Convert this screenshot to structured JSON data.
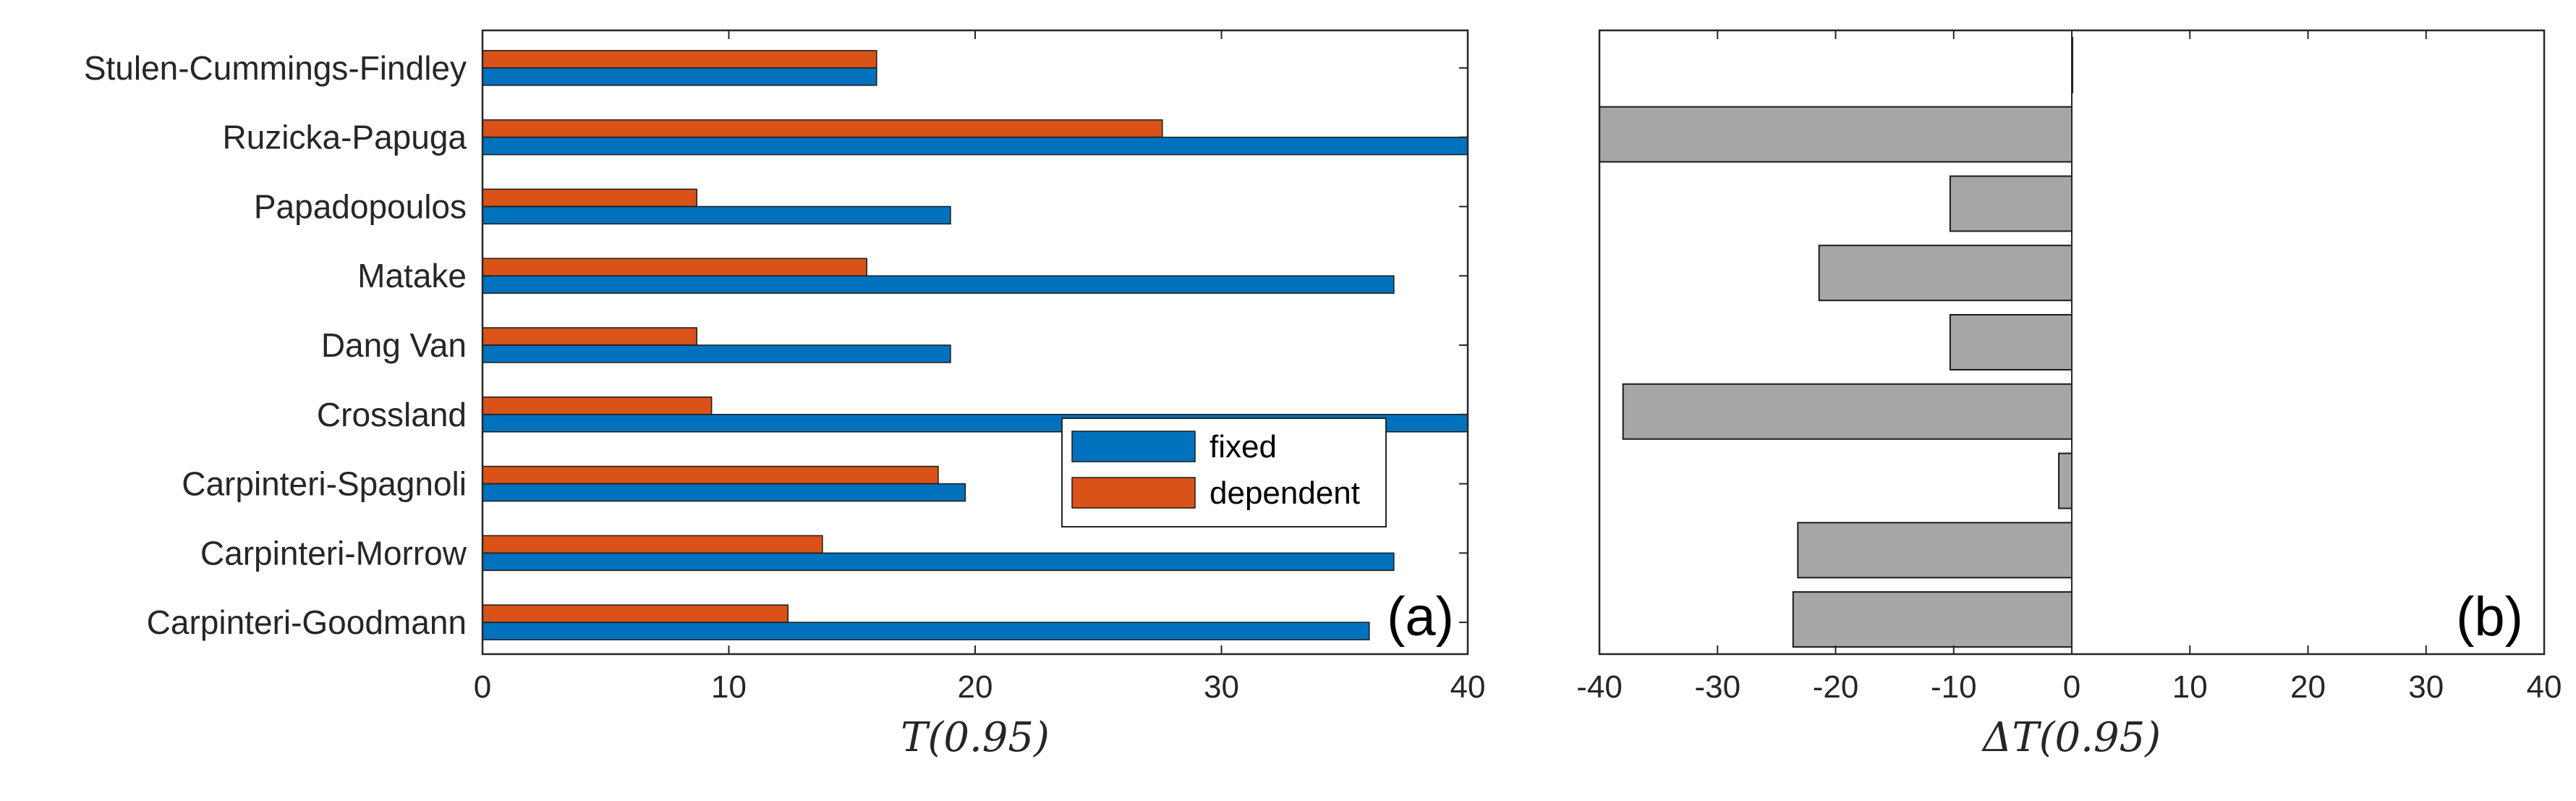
{
  "chart_data": [
    {
      "type": "bar",
      "orientation": "horizontal",
      "panel_label": "(a)",
      "xlabel": "T(0.95)",
      "ylabel": "",
      "xlim": [
        0,
        40
      ],
      "xticks": [
        0,
        10,
        20,
        30,
        40
      ],
      "categories": [
        "Stulen-Cummings-Findley",
        "Ruzicka-Papuga",
        "Papadopoulos",
        "Matake",
        "Dang Van",
        "Crossland",
        "Carpinteri-Spagnoli",
        "Carpinteri-Morrow",
        "Carpinteri-Goodmann"
      ],
      "series": [
        {
          "name": "fixed",
          "color": "#0072BD",
          "values": [
            16,
            40,
            19,
            37,
            19,
            40,
            19.6,
            37,
            36
          ]
        },
        {
          "name": "dependent",
          "color": "#D95319",
          "values": [
            16,
            27.6,
            8.7,
            15.6,
            8.7,
            9.3,
            18.5,
            13.8,
            12.4
          ]
        }
      ],
      "legend_position": "lower-right",
      "grid": false
    },
    {
      "type": "bar",
      "orientation": "horizontal",
      "panel_label": "(b)",
      "xlabel": "ΔT(0.95)",
      "ylabel": "",
      "xlim": [
        -40,
        40
      ],
      "xticks": [
        -40,
        -30,
        -20,
        -10,
        0,
        10,
        20,
        30,
        40
      ],
      "categories": [
        "Stulen-Cummings-Findley",
        "Ruzicka-Papuga",
        "Papadopoulos",
        "Matake",
        "Dang Van",
        "Crossland",
        "Carpinteri-Spagnoli",
        "Carpinteri-Morrow",
        "Carpinteri-Goodmann"
      ],
      "series": [
        {
          "name": "ΔT",
          "color": "#A6A6A6",
          "values": [
            0,
            -40,
            -10.3,
            -21.4,
            -10.3,
            -38,
            -1.1,
            -23.2,
            -23.6
          ]
        }
      ],
      "grid": false
    }
  ]
}
